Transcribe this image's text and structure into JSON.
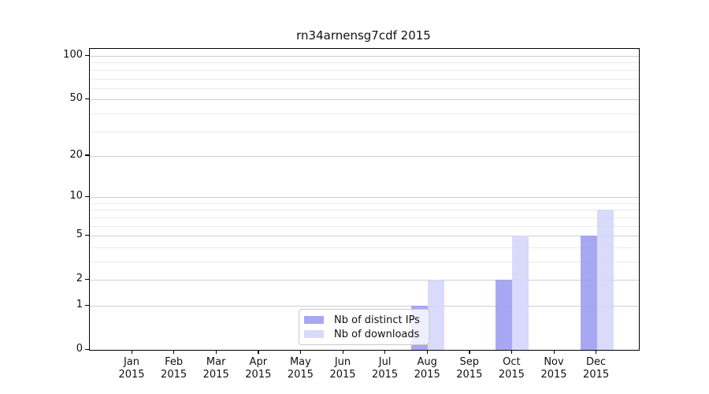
{
  "chart_data": {
    "type": "bar",
    "title": "rn34arnensg7cdf 2015",
    "categories": [
      "Jan",
      "Feb",
      "Mar",
      "Apr",
      "May",
      "Jun",
      "Jul",
      "Aug",
      "Sep",
      "Oct",
      "Nov",
      "Dec"
    ],
    "category_year": "2015",
    "series": [
      {
        "name": "Nb of distinct IPs",
        "color": "rgba(153,153,240,0.85)",
        "values": [
          0,
          0,
          0,
          0,
          0,
          0,
          0,
          1,
          0,
          2,
          0,
          5
        ]
      },
      {
        "name": "Nb of downloads",
        "color": "rgba(212,212,250,0.85)",
        "values": [
          0,
          0,
          0,
          0,
          0,
          0,
          0,
          2,
          0,
          5,
          0,
          8
        ]
      }
    ],
    "yscale": "log1p",
    "ylim": [
      0,
      112
    ],
    "yticks": [
      0,
      1,
      2,
      5,
      10,
      20,
      50,
      100
    ],
    "yticks_minor": [
      3,
      4,
      6,
      7,
      8,
      9,
      30,
      40,
      60,
      70,
      80,
      90
    ],
    "grid": "on",
    "legend_position": "inside-lower-center",
    "colors": {
      "major_grid": "#cfcfcf",
      "minor_grid": "#ebebeb",
      "axis": "#000000",
      "text": "#111111"
    }
  }
}
